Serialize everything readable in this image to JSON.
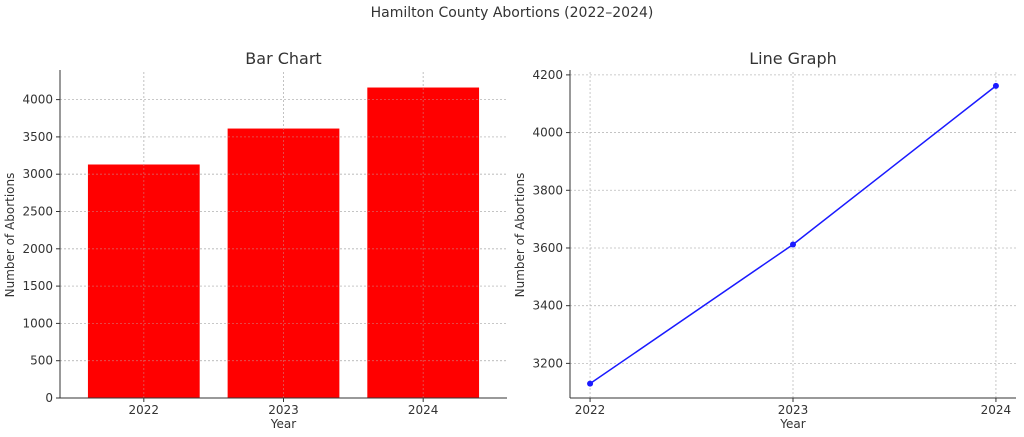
{
  "figure": {
    "title": "Hamilton County Abortions (2022–2024)"
  },
  "chart_data": [
    {
      "type": "bar",
      "title": "Bar Chart",
      "xlabel": "Year",
      "ylabel": "Number of Abortions",
      "categories": [
        "2022",
        "2023",
        "2024"
      ],
      "values": [
        3130,
        3612,
        4162
      ],
      "ylim": [
        0,
        4370
      ],
      "yticks": [
        0,
        500,
        1000,
        1500,
        2000,
        2500,
        3000,
        3500,
        4000
      ],
      "color": "#ff0000",
      "grid": true
    },
    {
      "type": "line",
      "title": "Line Graph",
      "xlabel": "Year",
      "ylabel": "Number of Abortions",
      "x": [
        "2022",
        "2023",
        "2024"
      ],
      "values": [
        3130,
        3612,
        4162
      ],
      "ylim": [
        3080,
        4210
      ],
      "yticks": [
        3200,
        3400,
        3600,
        3800,
        4000,
        4200
      ],
      "color": "#1a1aff",
      "marker": "circle",
      "grid": true
    }
  ]
}
